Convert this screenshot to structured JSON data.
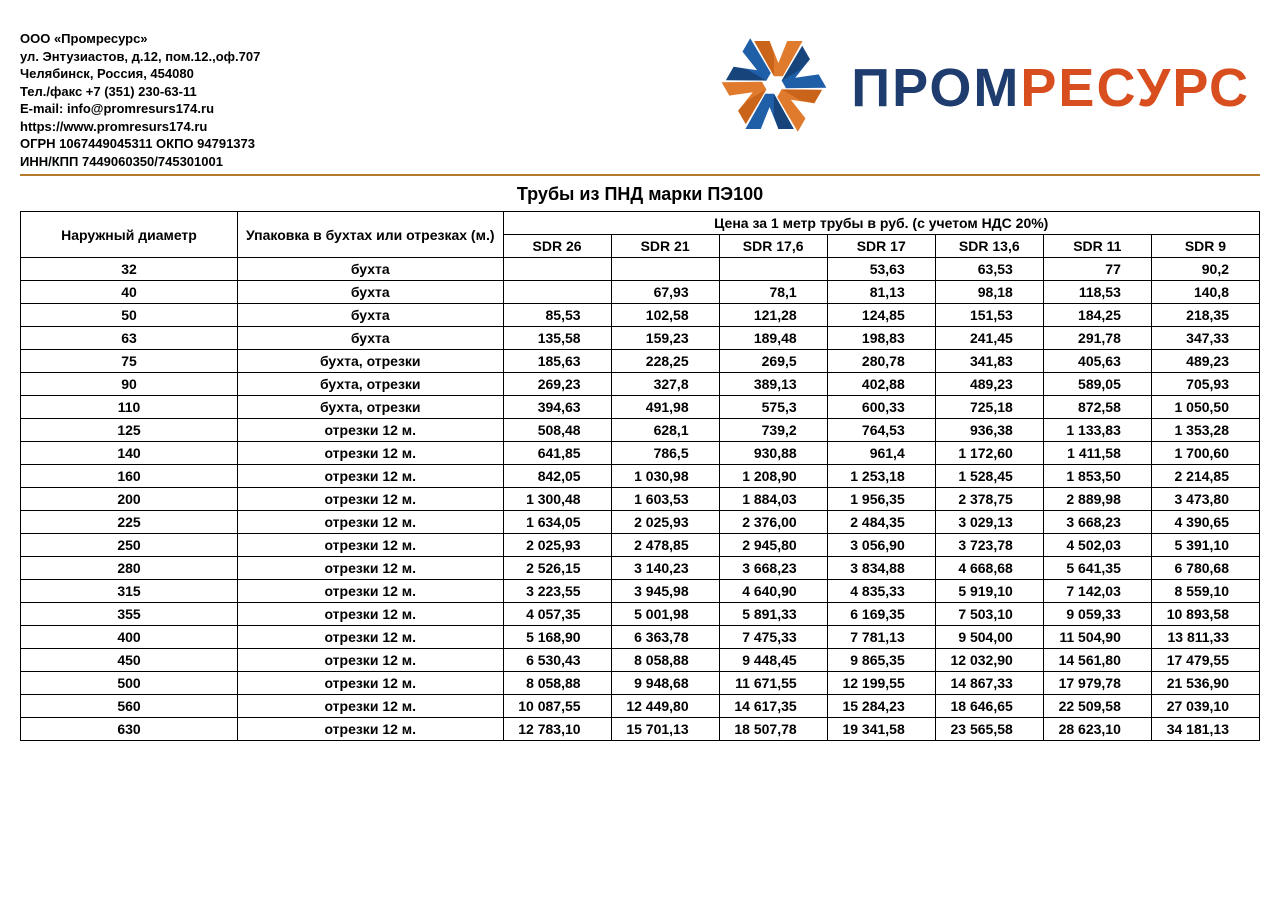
{
  "company": {
    "name": "ООО «Промресурс»",
    "address1": "ул. Энтузиастов, д.12, пом.12.,оф.707",
    "address2": "Челябинск, Россия, 454080",
    "phone": "Тел./факс +7 (351) 230-63-11",
    "email": "E-mail: info@promresurs174.ru",
    "website": "https://www.promresurs174.ru",
    "ogrn": "ОГРН 1067449045311 ОКПО 94791373",
    "inn": "ИНН/КПП 7449060350/745301001"
  },
  "logo": {
    "part1": "ПРОМ",
    "part2": "РЕСУРС",
    "color1": "#1f3c6e",
    "color2": "#d94e1e",
    "icon_orange": "#e07b2e",
    "icon_blue": "#1f5fa8",
    "icon_darkblue": "#17447a"
  },
  "title": "Трубы из ПНД марки ПЭ100",
  "table": {
    "header_diameter": "Наружный диаметр",
    "header_packaging": "Упаковка в бухтах или отрезках (м.)",
    "header_price_span": "Цена за 1 метр трубы в руб. (с учетом НДС 20%)",
    "sdr_columns": [
      "SDR 26",
      "SDR 21",
      "SDR 17,6",
      "SDR 17",
      "SDR 13,6",
      "SDR 11",
      "SDR 9"
    ],
    "rows": [
      {
        "d": "32",
        "p": "бухта",
        "v": [
          "",
          "",
          "",
          "53,63",
          "63,53",
          "77",
          "90,2"
        ]
      },
      {
        "d": "40",
        "p": "бухта",
        "v": [
          "",
          "67,93",
          "78,1",
          "81,13",
          "98,18",
          "118,53",
          "140,8"
        ]
      },
      {
        "d": "50",
        "p": "бухта",
        "v": [
          "85,53",
          "102,58",
          "121,28",
          "124,85",
          "151,53",
          "184,25",
          "218,35"
        ]
      },
      {
        "d": "63",
        "p": "бухта",
        "v": [
          "135,58",
          "159,23",
          "189,48",
          "198,83",
          "241,45",
          "291,78",
          "347,33"
        ]
      },
      {
        "d": "75",
        "p": "бухта, отрезки",
        "v": [
          "185,63",
          "228,25",
          "269,5",
          "280,78",
          "341,83",
          "405,63",
          "489,23"
        ]
      },
      {
        "d": "90",
        "p": "бухта, отрезки",
        "v": [
          "269,23",
          "327,8",
          "389,13",
          "402,88",
          "489,23",
          "589,05",
          "705,93"
        ]
      },
      {
        "d": "110",
        "p": "бухта, отрезки",
        "v": [
          "394,63",
          "491,98",
          "575,3",
          "600,33",
          "725,18",
          "872,58",
          "1 050,50"
        ]
      },
      {
        "d": "125",
        "p": "отрезки 12 м.",
        "v": [
          "508,48",
          "628,1",
          "739,2",
          "764,53",
          "936,38",
          "1 133,83",
          "1 353,28"
        ]
      },
      {
        "d": "140",
        "p": "отрезки 12 м.",
        "v": [
          "641,85",
          "786,5",
          "930,88",
          "961,4",
          "1 172,60",
          "1 411,58",
          "1 700,60"
        ]
      },
      {
        "d": "160",
        "p": "отрезки 12 м.",
        "v": [
          "842,05",
          "1 030,98",
          "1 208,90",
          "1 253,18",
          "1 528,45",
          "1 853,50",
          "2 214,85"
        ]
      },
      {
        "d": "200",
        "p": "отрезки 12 м.",
        "v": [
          "1 300,48",
          "1 603,53",
          "1 884,03",
          "1 956,35",
          "2 378,75",
          "2 889,98",
          "3 473,80"
        ]
      },
      {
        "d": "225",
        "p": "отрезки 12 м.",
        "v": [
          "1 634,05",
          "2 025,93",
          "2 376,00",
          "2 484,35",
          "3 029,13",
          "3 668,23",
          "4 390,65"
        ]
      },
      {
        "d": "250",
        "p": "отрезки 12 м.",
        "v": [
          "2 025,93",
          "2 478,85",
          "2 945,80",
          "3 056,90",
          "3 723,78",
          "4 502,03",
          "5 391,10"
        ]
      },
      {
        "d": "280",
        "p": "отрезки 12 м.",
        "v": [
          "2 526,15",
          "3 140,23",
          "3 668,23",
          "3 834,88",
          "4 668,68",
          "5 641,35",
          "6 780,68"
        ]
      },
      {
        "d": "315",
        "p": "отрезки 12 м.",
        "v": [
          "3 223,55",
          "3 945,98",
          "4 640,90",
          "4 835,33",
          "5 919,10",
          "7 142,03",
          "8 559,10"
        ]
      },
      {
        "d": "355",
        "p": "отрезки 12 м.",
        "v": [
          "4 057,35",
          "5 001,98",
          "5 891,33",
          "6 169,35",
          "7 503,10",
          "9 059,33",
          "10 893,58"
        ]
      },
      {
        "d": "400",
        "p": "отрезки 12 м.",
        "v": [
          "5 168,90",
          "6 363,78",
          "7 475,33",
          "7 781,13",
          "9 504,00",
          "11 504,90",
          "13 811,33"
        ]
      },
      {
        "d": "450",
        "p": "отрезки 12 м.",
        "v": [
          "6 530,43",
          "8 058,88",
          "9 448,45",
          "9 865,35",
          "12 032,90",
          "14 561,80",
          "17 479,55"
        ]
      },
      {
        "d": "500",
        "p": "отрезки 12 м.",
        "v": [
          "8 058,88",
          "9 948,68",
          "11 671,55",
          "12 199,55",
          "14 867,33",
          "17 979,78",
          "21 536,90"
        ]
      },
      {
        "d": "560",
        "p": "отрезки 12 м.",
        "v": [
          "10 087,55",
          "12 449,80",
          "14 617,35",
          "15 284,23",
          "18 646,65",
          "22 509,58",
          "27 039,10"
        ]
      },
      {
        "d": "630",
        "p": "отрезки 12 м.",
        "v": [
          "12 783,10",
          "15 701,13",
          "18 507,78",
          "19 341,58",
          "23 565,58",
          "28 623,10",
          "34 181,13"
        ]
      }
    ]
  },
  "styling": {
    "type": "table",
    "background_color": "#ffffff",
    "border_color": "#000000",
    "underline_color": "#b57a2a",
    "font_family": "Arial",
    "title_fontsize": 18,
    "body_fontsize": 14,
    "info_fontsize": 13,
    "col_widths_pct": [
      16,
      13,
      10.1,
      10.1,
      10.1,
      10.1,
      10.1,
      10.1,
      10.1
    ]
  }
}
